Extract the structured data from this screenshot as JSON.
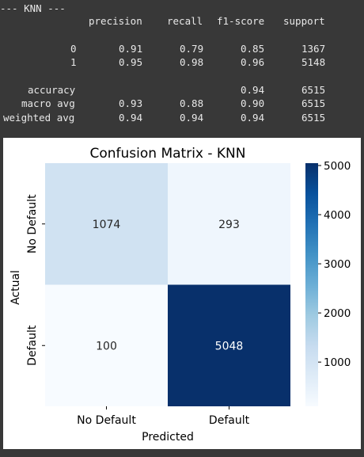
{
  "report": {
    "title": "--- KNN ---",
    "headers": [
      "precision",
      "recall",
      "f1-score",
      "support"
    ],
    "class_rows": [
      {
        "label": "0",
        "precision": "0.91",
        "recall": "0.79",
        "f1": "0.85",
        "support": "1367"
      },
      {
        "label": "1",
        "precision": "0.95",
        "recall": "0.98",
        "f1": "0.96",
        "support": "5148"
      }
    ],
    "summary_rows": [
      {
        "label": "accuracy",
        "precision": "",
        "recall": "",
        "f1": "0.94",
        "support": "6515"
      },
      {
        "label": "macro avg",
        "precision": "0.93",
        "recall": "0.88",
        "f1": "0.90",
        "support": "6515"
      },
      {
        "label": "weighted avg",
        "precision": "0.94",
        "recall": "0.94",
        "f1": "0.94",
        "support": "6515"
      }
    ]
  },
  "chart_data": {
    "type": "heatmap",
    "title": "Confusion Matrix - KNN",
    "xlabel": "Predicted",
    "ylabel": "Actual",
    "x_categories": [
      "No Default",
      "Default"
    ],
    "y_categories": [
      "No Default",
      "Default"
    ],
    "values": [
      [
        1074,
        293
      ],
      [
        100,
        5048
      ]
    ],
    "colorbar": {
      "min": 100,
      "max": 5048,
      "ticks": [
        1000,
        2000,
        3000,
        4000,
        5000
      ]
    },
    "colormap": "Blues",
    "colors": {
      "low": "#f7fbff",
      "high": "#08306b"
    }
  }
}
